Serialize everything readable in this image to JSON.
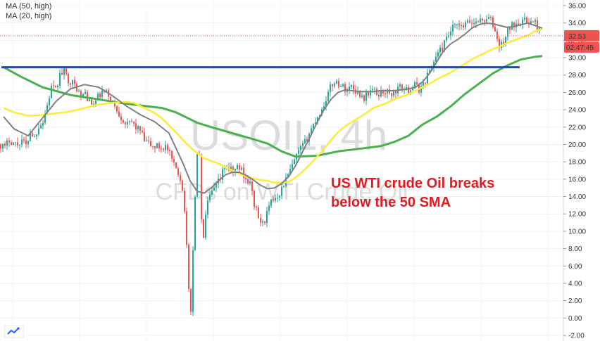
{
  "legend": [
    "MA (50, high)",
    "MA (20, high)"
  ],
  "watermark": {
    "symbol": "USOIL, 4h",
    "description": "CFDs on WTI Crude Oil"
  },
  "annotation": [
    "US WTI crude Oil breaks",
    "below the 50 SMA"
  ],
  "price_labels": {
    "last": "32.53",
    "countdown": "02:47:45"
  },
  "colors": {
    "up": "#26a69a",
    "down": "#ef5350",
    "ma_slow": "#4caf50",
    "ma_mid": "#ffeb3b",
    "ma_fast": "#808080",
    "resistance": "#1f4e9e",
    "annotation": "#e21b23"
  },
  "chart_data": {
    "type": "candlestick",
    "title": "",
    "xlabel": "",
    "ylabel": "",
    "ylim": [
      -2.5,
      36.5
    ],
    "yticks": [
      "36.00",
      "34.00",
      "32.00",
      "30.00",
      "28.00",
      "26.00",
      "24.00",
      "22.00",
      "20.00",
      "18.00",
      "16.00",
      "14.00",
      "12.00",
      "10.00",
      "8.00",
      "6.00",
      "4.00",
      "2.00",
      "0.00",
      "-2.00"
    ],
    "ytick_values": [
      36,
      34,
      32,
      30,
      28,
      26,
      24,
      22,
      20,
      18,
      16,
      14,
      12,
      10,
      8,
      6,
      4,
      2,
      0,
      -2
    ],
    "resistance_level": 28.9,
    "last_price": 32.53,
    "path": [
      [
        0,
        20
      ],
      [
        6,
        19.6
      ],
      [
        12,
        20.6
      ],
      [
        18,
        20.2
      ],
      [
        24,
        20
      ],
      [
        30,
        20.6
      ],
      [
        36,
        19.8
      ],
      [
        42,
        21.5
      ],
      [
        48,
        20.8
      ],
      [
        54,
        22.2
      ],
      [
        60,
        22.6
      ],
      [
        66,
        24.5
      ],
      [
        72,
        26.6
      ],
      [
        78,
        26.2
      ],
      [
        84,
        28
      ],
      [
        90,
        28.4
      ],
      [
        96,
        27.5
      ],
      [
        102,
        27.1
      ],
      [
        108,
        26.5
      ],
      [
        114,
        25.4
      ],
      [
        120,
        26
      ],
      [
        126,
        24.8
      ],
      [
        132,
        24.6
      ],
      [
        138,
        25.4
      ],
      [
        144,
        26
      ],
      [
        150,
        25.9
      ],
      [
        156,
        25.3
      ],
      [
        162,
        24.3
      ],
      [
        168,
        23.6
      ],
      [
        174,
        22.8
      ],
      [
        180,
        22.2
      ],
      [
        186,
        22.6
      ],
      [
        192,
        22
      ],
      [
        198,
        21.6
      ],
      [
        204,
        20.4
      ],
      [
        210,
        20.1
      ],
      [
        216,
        19.7
      ],
      [
        222,
        19.8
      ],
      [
        228,
        19.6
      ],
      [
        234,
        19.8
      ],
      [
        240,
        18.8
      ],
      [
        246,
        17.5
      ],
      [
        250,
        17.2
      ],
      [
        256,
        16
      ],
      [
        262,
        12
      ],
      [
        266,
        4
      ],
      [
        270,
        1
      ],
      [
        274,
        10
      ],
      [
        278,
        18.5
      ],
      [
        282,
        19
      ],
      [
        285,
        11
      ],
      [
        288,
        9.5
      ],
      [
        292,
        12.5
      ],
      [
        296,
        13.8
      ],
      [
        300,
        14.4
      ],
      [
        306,
        15.2
      ],
      [
        312,
        16
      ],
      [
        318,
        17.5
      ],
      [
        324,
        17.2
      ],
      [
        330,
        16.8
      ],
      [
        336,
        17.4
      ],
      [
        342,
        17.1
      ],
      [
        348,
        16
      ],
      [
        354,
        15.5
      ],
      [
        360,
        13.2
      ],
      [
        366,
        11.5
      ],
      [
        372,
        10.8
      ],
      [
        378,
        12
      ],
      [
        384,
        13.3
      ],
      [
        390,
        14
      ],
      [
        396,
        14.4
      ],
      [
        402,
        15.5
      ],
      [
        408,
        16.4
      ],
      [
        414,
        17.5
      ],
      [
        420,
        18.6
      ],
      [
        426,
        19.5
      ],
      [
        432,
        20.2
      ],
      [
        438,
        21.3
      ],
      [
        444,
        22.3
      ],
      [
        450,
        23.3
      ],
      [
        456,
        24
      ],
      [
        462,
        25.3
      ],
      [
        468,
        26.5
      ],
      [
        474,
        27.3
      ],
      [
        480,
        27
      ],
      [
        486,
        26.6
      ],
      [
        492,
        26.3
      ],
      [
        498,
        26.8
      ],
      [
        504,
        26.2
      ],
      [
        510,
        25.8
      ],
      [
        516,
        25.4
      ],
      [
        522,
        26
      ],
      [
        528,
        26.3
      ],
      [
        534,
        25.8
      ],
      [
        540,
        26
      ],
      [
        546,
        26.2
      ],
      [
        552,
        25.8
      ],
      [
        558,
        26
      ],
      [
        564,
        26.4
      ],
      [
        570,
        26.6
      ],
      [
        576,
        26.2
      ],
      [
        582,
        26.5
      ],
      [
        588,
        26.8
      ],
      [
        594,
        26.4
      ],
      [
        600,
        26.9
      ],
      [
        606,
        28
      ],
      [
        612,
        29
      ],
      [
        618,
        30.2
      ],
      [
        624,
        30.8
      ],
      [
        630,
        31.6
      ],
      [
        636,
        32.6
      ],
      [
        642,
        33.4
      ],
      [
        648,
        33.7
      ],
      [
        654,
        33.4
      ],
      [
        660,
        33.8
      ],
      [
        666,
        34.1
      ],
      [
        672,
        34
      ],
      [
        678,
        34.4
      ],
      [
        684,
        34.2
      ],
      [
        690,
        34.6
      ],
      [
        696,
        34.3
      ],
      [
        702,
        33.1
      ],
      [
        708,
        31.2
      ],
      [
        714,
        31.8
      ],
      [
        720,
        33.2
      ],
      [
        726,
        33.7
      ],
      [
        732,
        34.1
      ],
      [
        738,
        34.3
      ],
      [
        744,
        34.2
      ],
      [
        750,
        34.2
      ],
      [
        756,
        34
      ],
      [
        760,
        33.9
      ],
      [
        764,
        33.4
      ],
      [
        767,
        32.6
      ]
    ],
    "series": [
      {
        "values_x": [
          5,
          30,
          60,
          100,
          140,
          170,
          190,
          210,
          230,
          250,
          265,
          280,
          300,
          330,
          360,
          380,
          400,
          420,
          450,
          480,
          510,
          540,
          560,
          580,
          600,
          620,
          640,
          660,
          680,
          700,
          720,
          740,
          760,
          770
        ],
        "values_y": [
          28.9,
          27.8,
          26.6,
          25.7,
          25.2,
          24.8,
          24.6,
          24.4,
          24.2,
          23.7,
          23.1,
          22.5,
          22,
          21.3,
          20.6,
          20.1,
          19.2,
          18.6,
          18.7,
          19.2,
          19.5,
          19.8,
          20.3,
          21,
          22.3,
          23.2,
          24.4,
          25.8,
          27,
          28.2,
          29.1,
          29.8,
          30.1,
          30.2
        ]
      },
      {
        "values_x": [
          5,
          20,
          40,
          60,
          80,
          100,
          120,
          140,
          160,
          180,
          190,
          200,
          210,
          220,
          230,
          240,
          250,
          260,
          270,
          280,
          290,
          300,
          310,
          320,
          330,
          340,
          350,
          360,
          370,
          380,
          390,
          400,
          410,
          420,
          430,
          440,
          450,
          460,
          470,
          480,
          490,
          500,
          510,
          520,
          530,
          540,
          550,
          560,
          570,
          580,
          590,
          600,
          610,
          620,
          630,
          640,
          650,
          660,
          670,
          680,
          690,
          700,
          710,
          720,
          730,
          740,
          750,
          760,
          770
        ],
        "values_y": [
          24.2,
          23.7,
          23.3,
          23.4,
          23.6,
          23.8,
          24.2,
          24.6,
          24.8,
          24.9,
          24.8,
          24.4,
          24,
          23.6,
          23,
          22.2,
          21.4,
          20.5,
          19.7,
          19,
          18.4,
          18.1,
          17.8,
          17.4,
          17,
          16.6,
          16.3,
          16.1,
          15.9,
          15.8,
          15.6,
          15.6,
          15.7,
          16.2,
          16.9,
          17.7,
          18.6,
          19.5,
          20.5,
          21.4,
          22.1,
          22.6,
          23.1,
          23.6,
          24.2,
          24.5,
          24.8,
          25.2,
          25.5,
          25.8,
          26.2,
          26.6,
          27,
          27.5,
          27.9,
          28.3,
          28.8,
          29.3,
          29.8,
          30.2,
          30.6,
          31,
          31.3,
          31.7,
          32,
          32.3,
          32.6,
          33.1,
          33.3
        ]
      },
      {
        "values_x": [
          5,
          20,
          40,
          60,
          80,
          100,
          120,
          140,
          160,
          180,
          200,
          220,
          240,
          260,
          270,
          280,
          290,
          300,
          310,
          320,
          330,
          340,
          350,
          360,
          370,
          380,
          390,
          400,
          410,
          420,
          430,
          440,
          450,
          460,
          470,
          480,
          490,
          500,
          510,
          520,
          530,
          540,
          550,
          560,
          570,
          580,
          590,
          600,
          610,
          620,
          630,
          640,
          650,
          660,
          670,
          680,
          690,
          700,
          710,
          720,
          730,
          740,
          750,
          760,
          770
        ],
        "values_y": [
          23.2,
          21.8,
          21,
          23,
          25,
          26.4,
          26.9,
          26.6,
          25.6,
          24.4,
          23.4,
          22.6,
          21.3,
          17.8,
          15.8,
          14.6,
          14.4,
          15,
          15.8,
          16.5,
          16.8,
          16.8,
          16.4,
          15.9,
          15.3,
          14.9,
          15,
          15.5,
          16.3,
          17.6,
          19.2,
          20.8,
          22.5,
          24,
          25.2,
          26,
          26.3,
          26.2,
          26.1,
          26.1,
          26.1,
          26.2,
          26.2,
          26.2,
          26.3,
          26.4,
          26.6,
          27.2,
          28.2,
          29.5,
          30.8,
          31.6,
          32.1,
          32.7,
          33.4,
          33.8,
          34,
          33.9,
          33.7,
          33.5,
          33.6,
          33.8,
          34,
          33.7,
          33.4
        ]
      }
    ]
  }
}
